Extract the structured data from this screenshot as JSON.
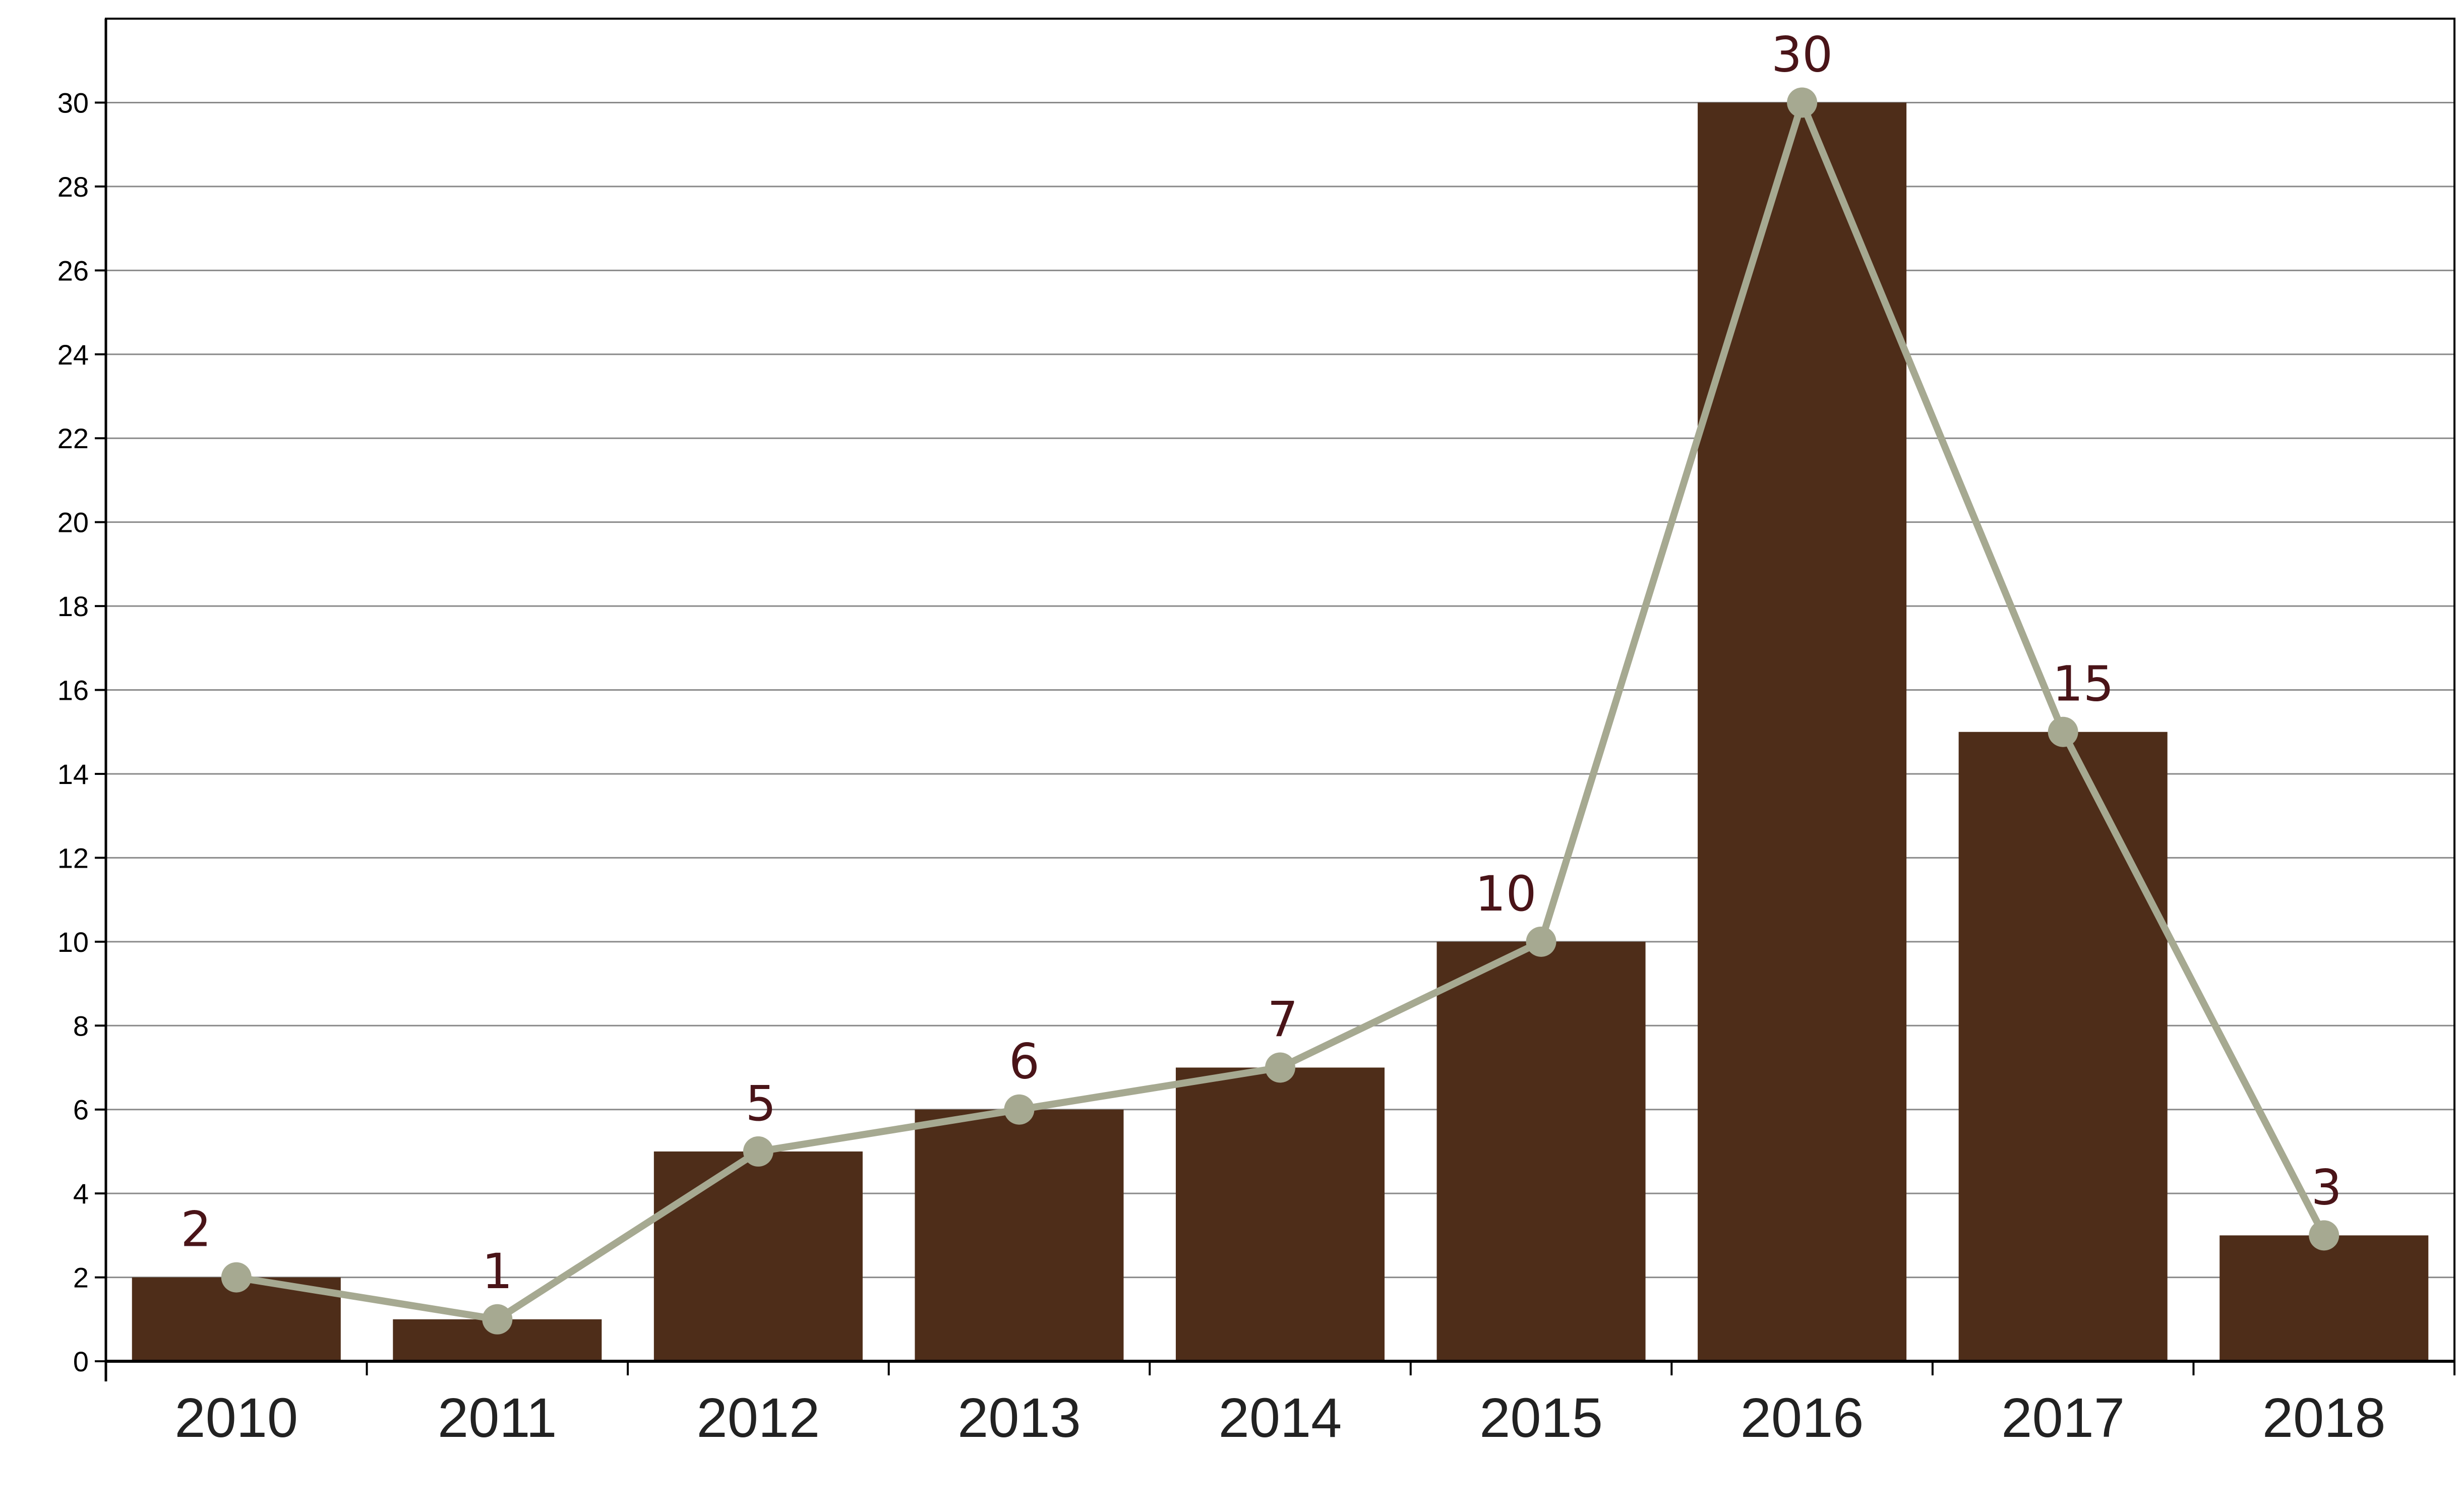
{
  "chart_data": {
    "type": "bar",
    "categories": [
      "2010",
      "2011",
      "2012",
      "2013",
      "2014",
      "2015",
      "2016",
      "2017",
      "2018"
    ],
    "values": [
      2,
      1,
      5,
      6,
      7,
      10,
      30,
      15,
      3
    ],
    "data_labels": [
      "2",
      "1",
      "5",
      "6",
      "7",
      "10",
      "30",
      "15",
      "3"
    ],
    "overlay": {
      "type": "line",
      "values": [
        2,
        1,
        5,
        6,
        7,
        10,
        30,
        15,
        3
      ],
      "markers": true
    },
    "yticks": [
      "0",
      "2",
      "4",
      "6",
      "8",
      "10",
      "12",
      "14",
      "16",
      "18",
      "20",
      "22",
      "24",
      "26",
      "28",
      "30"
    ],
    "ylim": [
      0,
      32
    ],
    "title": "",
    "xlabel": "",
    "ylabel": "",
    "grid": true,
    "legend": "none",
    "colors": {
      "bar": "#4e2d19",
      "line": "#a6a991",
      "marker": "#a6a991",
      "label": "#4a1418",
      "grid": "#8a8a8a",
      "axis": "#000000"
    }
  }
}
